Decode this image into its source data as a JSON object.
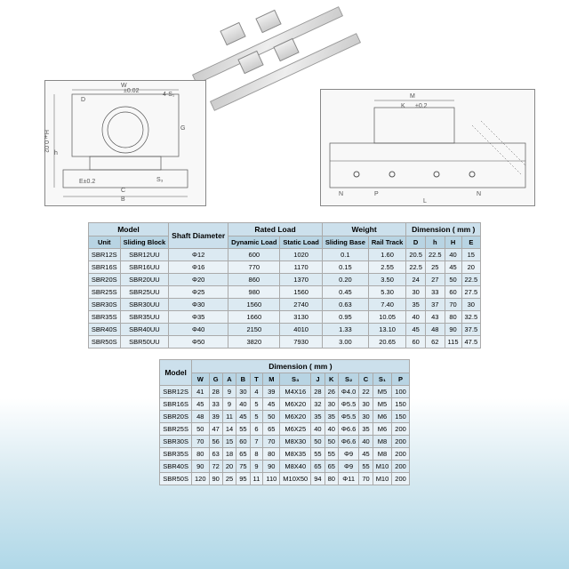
{
  "table1": {
    "header_groups": [
      "Model",
      "Shaft Diameter",
      "Rated Load",
      "Weight",
      "Dimension ( mm )"
    ],
    "sub_headers": [
      "Unit",
      "Sliding Block",
      "",
      "Dynamic Load",
      "Static Load",
      "Sliding Base",
      "Rail Track",
      "D",
      "h",
      "H",
      "E"
    ],
    "rows": [
      [
        "SBR12S",
        "SBR12UU",
        "Φ12",
        "600",
        "1020",
        "0.1",
        "1.60",
        "20.5",
        "22.5",
        "40",
        "15"
      ],
      [
        "SBR16S",
        "SBR16UU",
        "Φ16",
        "770",
        "1170",
        "0.15",
        "2.55",
        "22.5",
        "25",
        "45",
        "20"
      ],
      [
        "SBR20S",
        "SBR20UU",
        "Φ20",
        "860",
        "1370",
        "0.20",
        "3.50",
        "24",
        "27",
        "50",
        "22.5"
      ],
      [
        "SBR25S",
        "SBR25UU",
        "Φ25",
        "980",
        "1560",
        "0.45",
        "5.30",
        "30",
        "33",
        "60",
        "27.5"
      ],
      [
        "SBR30S",
        "SBR30UU",
        "Φ30",
        "1560",
        "2740",
        "0.63",
        "7.40",
        "35",
        "37",
        "70",
        "30"
      ],
      [
        "SBR35S",
        "SBR35UU",
        "Φ35",
        "1660",
        "3130",
        "0.95",
        "10.05",
        "40",
        "43",
        "80",
        "32.5"
      ],
      [
        "SBR40S",
        "SBR40UU",
        "Φ40",
        "2150",
        "4010",
        "1.33",
        "13.10",
        "45",
        "48",
        "90",
        "37.5"
      ],
      [
        "SBR50S",
        "SBR50UU",
        "Φ50",
        "3820",
        "7930",
        "3.00",
        "20.65",
        "60",
        "62",
        "115",
        "47.5"
      ]
    ]
  },
  "table2": {
    "header_top": "Model",
    "header_group": "Dimension ( mm )",
    "sub_headers": [
      "",
      "W",
      "G",
      "A",
      "B",
      "T",
      "M",
      "S₃",
      "J",
      "K",
      "S₂",
      "C",
      "S₁",
      "P"
    ],
    "rows": [
      [
        "SBR12S",
        "41",
        "28",
        "9",
        "30",
        "4",
        "39",
        "M4X16",
        "28",
        "26",
        "Φ4.0",
        "22",
        "M5",
        "100"
      ],
      [
        "SBR16S",
        "45",
        "33",
        "9",
        "40",
        "5",
        "45",
        "M6X20",
        "32",
        "30",
        "Φ5.5",
        "30",
        "M5",
        "150"
      ],
      [
        "SBR20S",
        "48",
        "39",
        "11",
        "45",
        "5",
        "50",
        "M6X20",
        "35",
        "35",
        "Φ5.5",
        "30",
        "M6",
        "150"
      ],
      [
        "SBR25S",
        "50",
        "47",
        "14",
        "55",
        "6",
        "65",
        "M6X25",
        "40",
        "40",
        "Φ6.6",
        "35",
        "M6",
        "200"
      ],
      [
        "SBR30S",
        "70",
        "56",
        "15",
        "60",
        "7",
        "70",
        "M8X30",
        "50",
        "50",
        "Φ6.6",
        "40",
        "M8",
        "200"
      ],
      [
        "SBR35S",
        "80",
        "63",
        "18",
        "65",
        "8",
        "80",
        "M8X35",
        "55",
        "55",
        "Φ9",
        "45",
        "M8",
        "200"
      ],
      [
        "SBR40S",
        "90",
        "72",
        "20",
        "75",
        "9",
        "90",
        "M8X40",
        "65",
        "65",
        "Φ9",
        "55",
        "M10",
        "200"
      ],
      [
        "SBR50S",
        "120",
        "90",
        "25",
        "95",
        "11",
        "110",
        "M10X50",
        "94",
        "80",
        "Φ11",
        "70",
        "M10",
        "200"
      ]
    ]
  },
  "labels": {
    "W": "W",
    "D": "D",
    "H": "H",
    "h": "h",
    "B": "B",
    "C": "C",
    "E": "E",
    "M": "M",
    "K": "K",
    "N": "N",
    "P": "P",
    "L": "L",
    "G": "G",
    "tol1": "±0.02",
    "tol2": "±0.2",
    "S3": "S₃",
    "4S1": "4-S₁",
    "Htol": "H±0.02",
    "Etol": "E±0.2"
  }
}
